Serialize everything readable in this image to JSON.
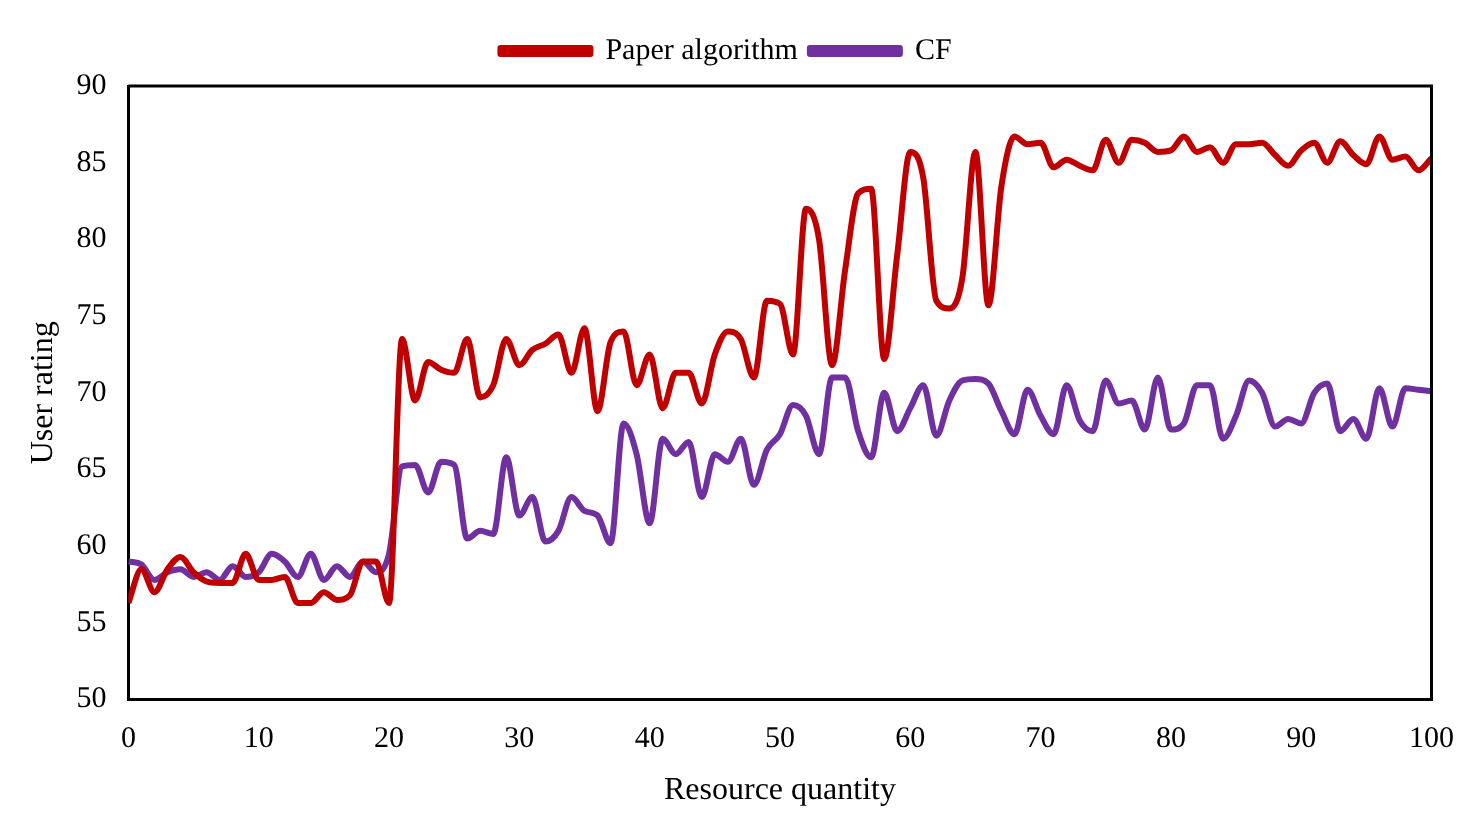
{
  "chart_data": {
    "type": "line",
    "xlabel": "Resource quantity",
    "ylabel": "User rating",
    "x": [
      0,
      1,
      2,
      3,
      4,
      5,
      6,
      7,
      8,
      9,
      10,
      11,
      12,
      13,
      14,
      15,
      16,
      17,
      18,
      19,
      20,
      21,
      22,
      23,
      24,
      25,
      26,
      27,
      28,
      29,
      30,
      31,
      32,
      33,
      34,
      35,
      36,
      37,
      38,
      39,
      40,
      41,
      42,
      43,
      44,
      45,
      46,
      47,
      48,
      49,
      50,
      51,
      52,
      53,
      54,
      55,
      56,
      57,
      58,
      59,
      60,
      61,
      62,
      63,
      64,
      65,
      66,
      67,
      68,
      69,
      70,
      71,
      72,
      73,
      74,
      75,
      76,
      77,
      78,
      79,
      80,
      81,
      82,
      83,
      84,
      85,
      86,
      87,
      88,
      89,
      90,
      91,
      92,
      93,
      94,
      95,
      96,
      97,
      98,
      99,
      100
    ],
    "series": [
      {
        "name": "Paper algorithm",
        "color": "#c00000",
        "values": [
          56.3,
          58.5,
          57,
          58.5,
          59.3,
          58.3,
          57.7,
          57.6,
          57.6,
          59.5,
          57.8,
          57.8,
          58,
          56.3,
          56.3,
          57,
          56.5,
          56.8,
          59,
          59,
          56.3,
          73.5,
          69.5,
          72,
          71.5,
          71.3,
          73.5,
          69.7,
          70.5,
          73.5,
          71.8,
          72.8,
          73.2,
          73.8,
          71.3,
          74.2,
          68.8,
          73.3,
          74,
          70.5,
          72.5,
          69,
          71.3,
          71.3,
          69.3,
          72.5,
          74,
          73.5,
          71,
          76,
          75.8,
          72.5,
          82,
          80,
          71.8,
          78,
          83,
          83.3,
          72.2,
          79,
          85.7,
          84,
          76,
          75.5,
          77.5,
          85.7,
          75.7,
          83.5,
          86.7,
          86.2,
          86.3,
          84.7,
          85.2,
          84.8,
          84.5,
          86.5,
          85,
          86.5,
          86.3,
          85.7,
          85.8,
          86.7,
          85.7,
          86,
          85,
          86.2,
          86.2,
          86.3,
          85.5,
          84.8,
          85.8,
          86.3,
          85,
          86.4,
          85.5,
          84.9,
          86.7,
          85.2,
          85.4,
          84.5,
          85.3
        ]
      },
      {
        "name": "CF",
        "color": "#7030a0",
        "values": [
          59,
          58.8,
          57.8,
          58.3,
          58.5,
          58,
          58.3,
          57.8,
          58.7,
          58,
          58.3,
          59.5,
          59,
          58,
          59.5,
          57.8,
          58.7,
          58,
          59,
          58.3,
          59.5,
          65.2,
          65.3,
          63.5,
          65.5,
          65.3,
          60.5,
          61,
          60.8,
          65.8,
          62,
          63.2,
          60.3,
          61,
          63.2,
          62.3,
          62,
          60.2,
          68,
          66,
          61.5,
          67,
          66,
          66.8,
          63.2,
          66,
          65.5,
          67,
          64,
          66.3,
          67.3,
          69.2,
          68.5,
          66,
          71,
          71,
          67.5,
          65.8,
          70,
          67.5,
          69,
          70.5,
          67.2,
          69.5,
          70.8,
          70.9,
          70.6,
          68.8,
          67.3,
          70.2,
          68.5,
          67.3,
          70.5,
          68.2,
          67.5,
          70.8,
          69.3,
          69.5,
          67.6,
          71,
          67.6,
          68,
          70.5,
          70.5,
          67,
          68.5,
          70.8,
          70,
          67.8,
          68.3,
          68,
          70,
          70.6,
          67.5,
          68.3,
          67,
          70.3,
          67.8,
          70.3,
          70.2,
          70.1
        ]
      }
    ],
    "xlim": [
      0,
      100
    ],
    "xticks": [
      0,
      10,
      20,
      30,
      40,
      50,
      60,
      70,
      80,
      90,
      100
    ],
    "ylim": [
      50,
      90
    ],
    "yticks": [
      50,
      55,
      60,
      65,
      70,
      75,
      80,
      85,
      90
    ],
    "grid": false,
    "legend": "top",
    "marker": "none",
    "line_style": "solid"
  }
}
